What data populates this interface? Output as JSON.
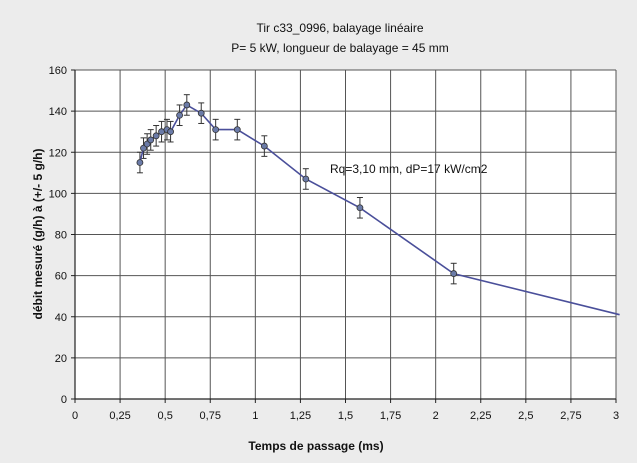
{
  "chart_data": {
    "type": "line",
    "title": "Tir c33_0996, balayage linéaire",
    "subtitle": "P= 5 kW, longueur de balayage = 45 mm",
    "xlabel": "Temps de passage (ms)",
    "ylabel": "débit mesuré (g/h) à (+/- 5 g/h)",
    "xlim": [
      0,
      3
    ],
    "ylim": [
      0,
      160
    ],
    "x_ticks": [
      "0",
      "0,25",
      "0,5",
      "0,75",
      "1",
      "1,25",
      "1,5",
      "1,75",
      "2",
      "2,25",
      "2,5",
      "2,75",
      "3"
    ],
    "y_ticks": [
      "0",
      "20",
      "40",
      "60",
      "80",
      "100",
      "120",
      "140",
      "160"
    ],
    "grid": true,
    "annotation": "Rq=3,10 mm, dP=17 kW/cm2",
    "error_bar": 5,
    "series": [
      {
        "x": [
          0.36,
          0.38,
          0.4,
          0.42,
          0.45,
          0.48,
          0.51,
          0.53,
          0.58,
          0.62,
          0.7,
          0.78,
          0.9,
          1.05,
          1.28,
          1.58,
          2.1,
          3.02
        ],
        "y": [
          115,
          122,
          124,
          126,
          128,
          130,
          131,
          130,
          138,
          143,
          139,
          131,
          131,
          123,
          107,
          93,
          61,
          41
        ],
        "error_bars": [
          true,
          true,
          true,
          true,
          true,
          true,
          true,
          true,
          true,
          true,
          true,
          true,
          true,
          true,
          true,
          true,
          true,
          false
        ]
      }
    ],
    "colors": {
      "line": "#4a4f9a",
      "marker": "#6b7ba8",
      "errorbar": "#333333",
      "grid": "#555555",
      "plot_bg": "#ffffff"
    }
  }
}
